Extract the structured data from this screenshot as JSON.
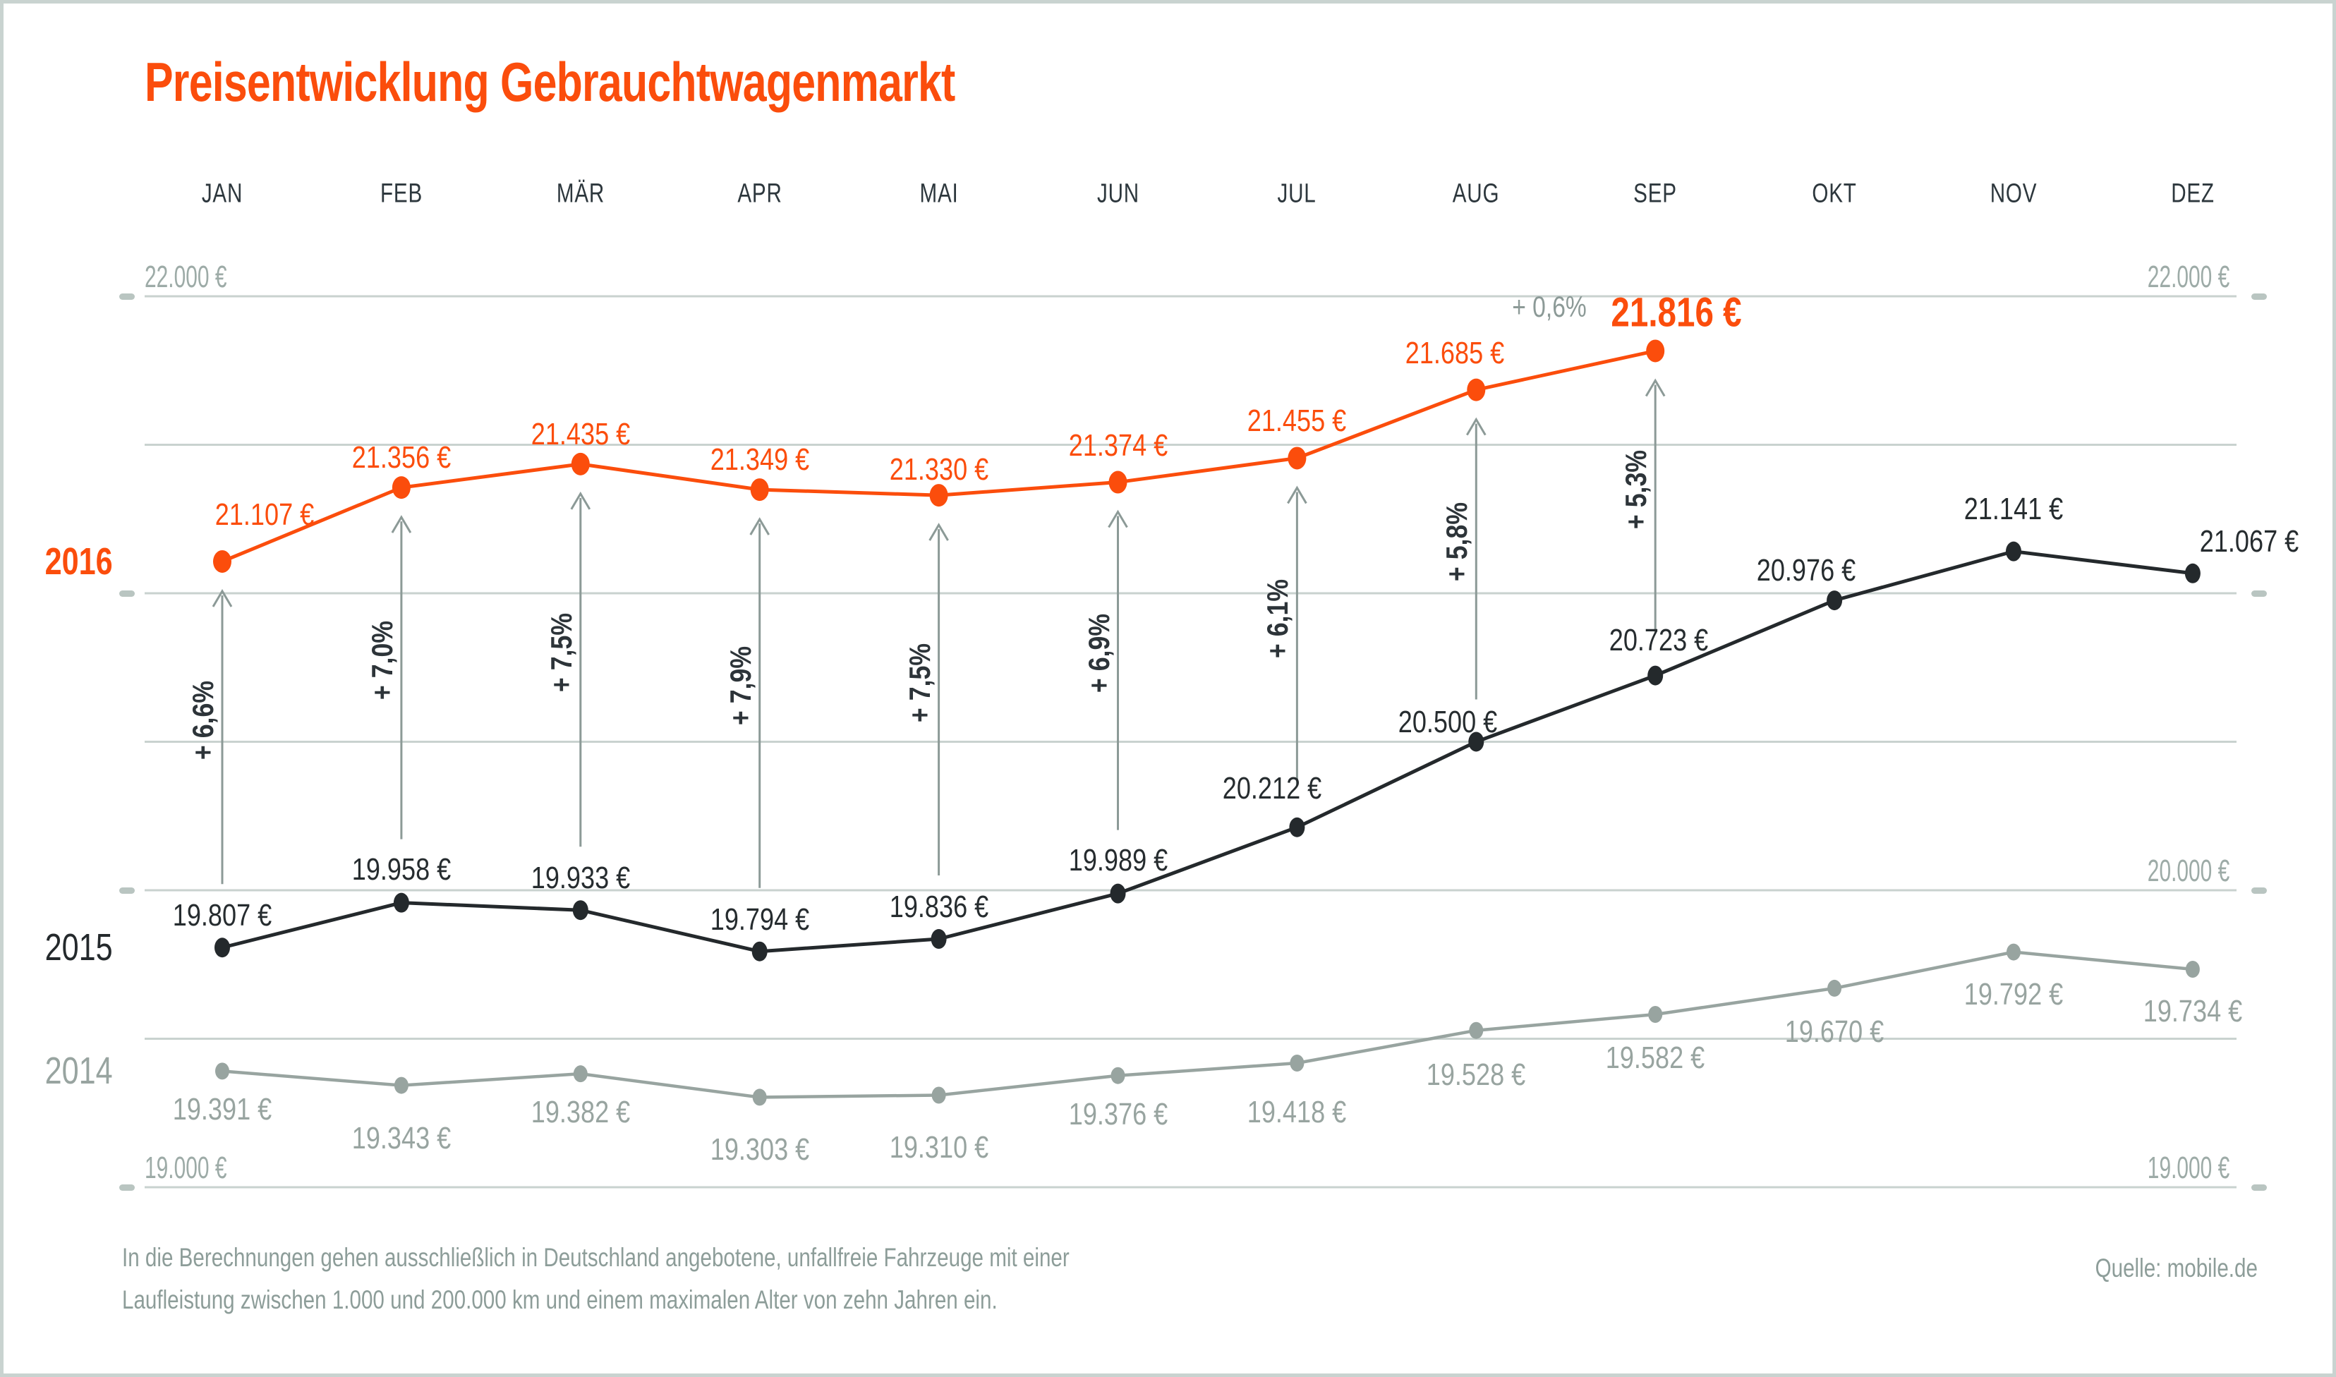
{
  "title": "Preisentwicklung Gebrauchtwagenmarkt",
  "footer": {
    "note_line1": "In die Berechnungen gehen ausschließlich in Deutschland angebotene, unfallfreie Fahrzeuge mit einer",
    "note_line2": "Laufleistung zwischen 1.000 und 200.000 km und einem maximalen Alter von zehn Jahren ein.",
    "source": "Quelle: mobile.de"
  },
  "colors": {
    "accent": "#fb4d0c",
    "line_2015": "#24292c",
    "line_2014": "#98a4a0",
    "grid": "#c9d2cf",
    "tick": "#b9c5c1",
    "arrow": "#8c9a97",
    "month_label": "#2d373d",
    "pct_label": "#2d3439",
    "axis_label": "#9daba7",
    "footer_text": "#8d9d99"
  },
  "chart_data": {
    "type": "line",
    "title": "Preisentwicklung Gebrauchtwagenmarkt",
    "categories": [
      "JAN",
      "FEB",
      "MÄR",
      "APR",
      "MAI",
      "JUN",
      "JUL",
      "AUG",
      "SEP",
      "OKT",
      "NOV",
      "DEZ"
    ],
    "ylim": [
      19000,
      22000
    ],
    "grid_step_eur": 500,
    "grid_on": true,
    "legend_position": "left edge, year labels at series start",
    "series": [
      {
        "name": "2016",
        "values": [
          21107,
          21356,
          21435,
          21349,
          21330,
          21374,
          21455,
          21685,
          21816
        ],
        "labels": [
          "21.107 €",
          "21.356 €",
          "21.435 €",
          "21.349 €",
          "21.330 €",
          "21.374 €",
          "21.455 €",
          "21.685 €",
          "21.816 €"
        ]
      },
      {
        "name": "2015",
        "values": [
          19807,
          19958,
          19933,
          19794,
          19836,
          19989,
          20212,
          20500,
          20723,
          20976,
          21141,
          21067
        ],
        "labels": [
          "19.807 €",
          "19.958 €",
          "19.933 €",
          "19.794 €",
          "19.836 €",
          "19.989 €",
          "20.212 €",
          "20.500 €",
          "20.723 €",
          "20.976 €",
          "21.141 €",
          "21.067 €"
        ]
      },
      {
        "name": "2014",
        "values": [
          19391,
          19343,
          19382,
          19303,
          19310,
          19376,
          19418,
          19528,
          19582,
          19670,
          19792,
          19734
        ],
        "labels": [
          "19.391 €",
          "19.343 €",
          "19.382 €",
          "19.303 €",
          "19.310 €",
          "19.376 €",
          "19.418 €",
          "19.528 €",
          "19.582 €",
          "19.670 €",
          "19.792 €",
          "19.734 €"
        ]
      }
    ],
    "yoy_change_labels": [
      "+ 6,6%",
      "+ 7,0%",
      "+ 7,5%",
      "+ 7,9%",
      "+ 7,5%",
      "+ 6,9%",
      "+ 6,1%",
      "+ 5,8%",
      "+ 5,3%"
    ],
    "latest_change_label": "+ 0,6%",
    "axis_labels_left": [
      {
        "value": 22000,
        "label": "22.000 €"
      },
      {
        "value": 19000,
        "label": "19.000 €"
      }
    ],
    "axis_labels_right": [
      {
        "value": 22000,
        "label": "22.000 €"
      },
      {
        "value": 20000,
        "label": "20.000 €"
      },
      {
        "value": 19000,
        "label": "19.000 €"
      }
    ],
    "tick_values_left": [
      22000,
      21000,
      20000,
      19000
    ],
    "tick_values_right": [
      22000,
      21000,
      20000,
      19000
    ]
  }
}
